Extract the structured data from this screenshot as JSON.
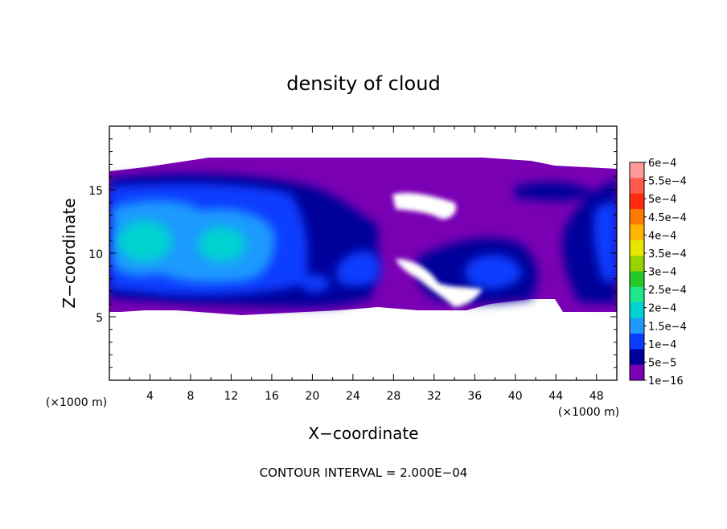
{
  "chart_data": {
    "type": "heatmap",
    "title": "density of cloud",
    "xlabel": "X−coordinate",
    "ylabel": "Z−coordinate",
    "x_unit": "(×1000 m)",
    "z_unit": "(×1000 m)",
    "xlim": [
      0,
      50
    ],
    "ylim": [
      0,
      20
    ],
    "x_ticks": [
      "4",
      "8",
      "12",
      "16",
      "20",
      "24",
      "28",
      "32",
      "36",
      "40",
      "44",
      "48"
    ],
    "y_ticks": [
      "5",
      "10",
      "15"
    ],
    "footer": "CONTOUR INTERVAL = 2.000E−04",
    "colorbar": {
      "levels": [
        "6e−4",
        "5.5e−4",
        "5e−4",
        "4.5e−4",
        "4e−4",
        "3.5e−4",
        "3e−4",
        "2.5e−4",
        "2e−4",
        "1.5e−4",
        "1e−4",
        "5e−5",
        "1e−16"
      ],
      "colors": [
        "#ff9a9a",
        "#ff5a4a",
        "#ff2a10",
        "#ff7a00",
        "#ffb400",
        "#e6e600",
        "#9ad200",
        "#28c828",
        "#1ee68c",
        "#00d2d2",
        "#1e9aff",
        "#0a3cff",
        "#00009a",
        "#7a00b4"
      ]
    },
    "cloud_layer": {
      "z_bottom": 5.3,
      "z_top": 16.5,
      "background_value": "1e−16",
      "regions": [
        {
          "x": 4,
          "z": 10.5,
          "level": "1.5e−4"
        },
        {
          "x": 10,
          "z": 10.0,
          "level": "1.5e−4"
        },
        {
          "x": 22,
          "z": 8.0,
          "level": "1e−4"
        },
        {
          "x": 25,
          "z": 9.0,
          "level": "1e−4"
        },
        {
          "x": 37,
          "z": 8.5,
          "level": "1e−4"
        },
        {
          "x": 48.5,
          "z": 10.0,
          "level": "1e−4"
        }
      ]
    }
  }
}
